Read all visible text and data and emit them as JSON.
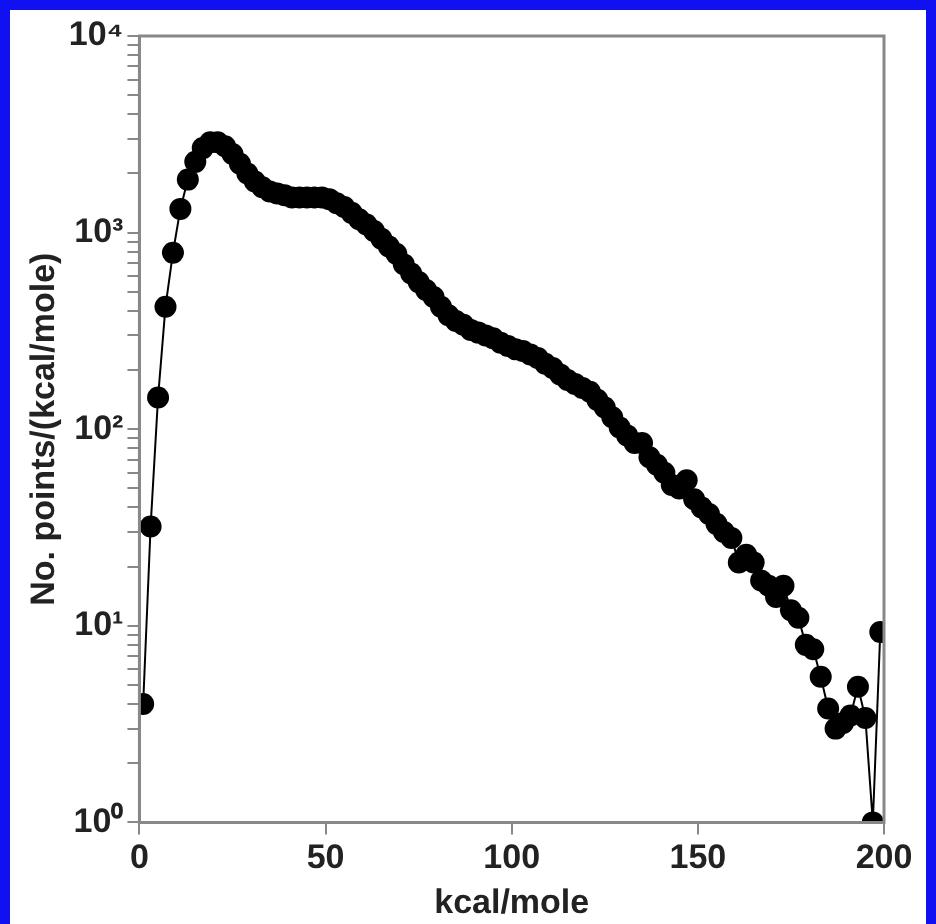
{
  "chart_data": {
    "type": "line",
    "xlabel": "kcal/mole",
    "ylabel": "No. points/(kcal/mole)",
    "log": "y",
    "marker": "circle",
    "line_style": "solid",
    "grid": false,
    "legend": false,
    "xlim": [
      0,
      200
    ],
    "xticks": [
      0,
      50,
      100,
      150,
      200
    ],
    "ylim": [
      1,
      10000
    ],
    "yticks": [
      {
        "value": 1,
        "label": "10⁰"
      },
      {
        "value": 2,
        "label": null
      },
      {
        "value": 3,
        "label": null
      },
      {
        "value": 4,
        "label": null
      },
      {
        "value": 5,
        "label": null
      },
      {
        "value": 6,
        "label": null
      },
      {
        "value": 7,
        "label": null
      },
      {
        "value": 8,
        "label": null
      },
      {
        "value": 9,
        "label": null
      },
      {
        "value": 10,
        "label": "10¹"
      },
      {
        "value": 20,
        "label": null
      },
      {
        "value": 30,
        "label": null
      },
      {
        "value": 40,
        "label": null
      },
      {
        "value": 50,
        "label": null
      },
      {
        "value": 60,
        "label": null
      },
      {
        "value": 70,
        "label": null
      },
      {
        "value": 80,
        "label": null
      },
      {
        "value": 90,
        "label": null
      },
      {
        "value": 100,
        "label": "10²"
      },
      {
        "value": 200,
        "label": null
      },
      {
        "value": 300,
        "label": null
      },
      {
        "value": 400,
        "label": null
      },
      {
        "value": 500,
        "label": null
      },
      {
        "value": 600,
        "label": null
      },
      {
        "value": 700,
        "label": null
      },
      {
        "value": 800,
        "label": null
      },
      {
        "value": 900,
        "label": null
      },
      {
        "value": 1000,
        "label": "10³"
      },
      {
        "value": 2000,
        "label": null
      },
      {
        "value": 3000,
        "label": null
      },
      {
        "value": 4000,
        "label": null
      },
      {
        "value": 5000,
        "label": null
      },
      {
        "value": 6000,
        "label": null
      },
      {
        "value": 7000,
        "label": null
      },
      {
        "value": 8000,
        "label": null
      },
      {
        "value": 9000,
        "label": null
      },
      {
        "value": 10000,
        "label": "10⁴"
      }
    ],
    "x": [
      1,
      3,
      5,
      7,
      9,
      11,
      13,
      15,
      17,
      19,
      21,
      23,
      25,
      27,
      29,
      31,
      33,
      35,
      37,
      39,
      41,
      43,
      45,
      47,
      49,
      51,
      53,
      55,
      57,
      59,
      61,
      63,
      65,
      67,
      69,
      71,
      73,
      75,
      77,
      79,
      81,
      83,
      85,
      87,
      89,
      91,
      93,
      95,
      97,
      99,
      101,
      103,
      105,
      107,
      109,
      111,
      113,
      115,
      117,
      119,
      121,
      123,
      125,
      127,
      129,
      131,
      133,
      135,
      137,
      139,
      141,
      143,
      145,
      147,
      149,
      151,
      153,
      155,
      157,
      159,
      161,
      163,
      165,
      167,
      169,
      171,
      173,
      175,
      177,
      179,
      181,
      183,
      185,
      187,
      189,
      191,
      193,
      195,
      197,
      199
    ],
    "series": [
      {
        "color": "#000000",
        "values": [
          4,
          32,
          145,
          420,
          790,
          1320,
          1860,
          2290,
          2690,
          2880,
          2880,
          2750,
          2510,
          2240,
          2000,
          1820,
          1700,
          1620,
          1580,
          1550,
          1510,
          1510,
          1510,
          1510,
          1510,
          1480,
          1410,
          1350,
          1260,
          1170,
          1100,
          1020,
          930,
          850,
          780,
          690,
          620,
          560,
          510,
          470,
          420,
          380,
          355,
          340,
          320,
          310,
          300,
          290,
          275,
          265,
          255,
          250,
          240,
          230,
          215,
          205,
          190,
          178,
          170,
          162,
          155,
          141,
          129,
          115,
          102,
          93,
          85,
          85,
          72,
          66,
          60,
          52,
          50,
          55,
          44,
          40,
          37,
          33,
          30,
          28,
          21,
          23,
          21,
          17,
          16,
          14,
          16,
          12,
          11,
          8,
          7.6,
          5.5,
          3.8,
          3,
          3.2,
          3.5,
          4.9,
          3.4,
          1,
          9.3
        ]
      }
    ]
  }
}
